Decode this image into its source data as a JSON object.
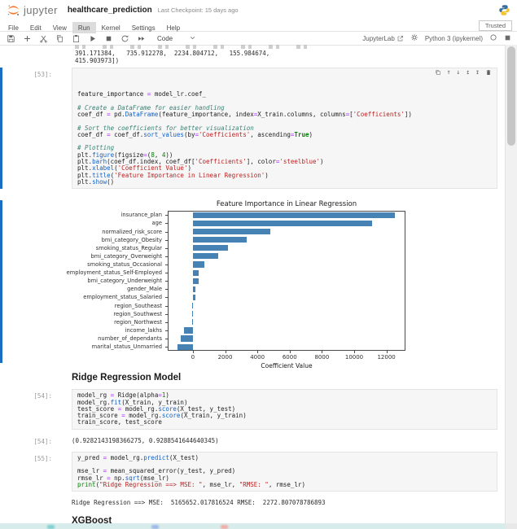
{
  "header": {
    "app_name": "jupyter",
    "notebook_title": "healthcare_prediction",
    "checkpoint": "Last Checkpoint: 15 days ago"
  },
  "menu": {
    "items": [
      "File",
      "Edit",
      "View",
      "Run",
      "Kernel",
      "Settings",
      "Help"
    ],
    "active_item": "Run",
    "trusted_label": "Trusted"
  },
  "toolbar": {
    "cell_type": "Code",
    "jupyterlab_label": "JupyterLab",
    "kernel_name": "Python 3 (ipykernel)"
  },
  "scrollback": {
    "lines": [
      "391.171384,   735.912278,  2234.804712,   155.984674,",
      "415.903973])"
    ]
  },
  "cells": [
    {
      "prompt": "[53]:",
      "lines": [
        [
          [
            "v",
            "feature_importance "
          ],
          [
            "o",
            "="
          ],
          [
            "v",
            " model_lr.coef_"
          ]
        ],
        [],
        [
          [
            "c",
            "# Create a DataFrame for easier handling"
          ]
        ],
        [
          [
            "v",
            "coef_df "
          ],
          [
            "o",
            "="
          ],
          [
            "v",
            " pd."
          ],
          [
            "f",
            "DataFrame"
          ],
          [
            "v",
            "(feature_importance, index"
          ],
          [
            "o",
            "="
          ],
          [
            "v",
            "X_train.columns, columns"
          ],
          [
            "o",
            "="
          ],
          [
            "v",
            "["
          ],
          [
            "s",
            "'Coefficients'"
          ],
          [
            "v",
            "])"
          ]
        ],
        [],
        [
          [
            "c",
            "# Sort the coefficients for better visualization"
          ]
        ],
        [
          [
            "v",
            "coef_df "
          ],
          [
            "o",
            "="
          ],
          [
            "v",
            " coef_df."
          ],
          [
            "f",
            "sort_values"
          ],
          [
            "v",
            "(by"
          ],
          [
            "o",
            "="
          ],
          [
            "s",
            "'Coefficients'"
          ],
          [
            "v",
            ", ascending"
          ],
          [
            "o",
            "="
          ],
          [
            "k",
            "True"
          ],
          [
            "v",
            ")"
          ]
        ],
        [],
        [
          [
            "c",
            "# Plotting"
          ]
        ],
        [
          [
            "v",
            "plt."
          ],
          [
            "f",
            "figure"
          ],
          [
            "v",
            "(figsize"
          ],
          [
            "o",
            "="
          ],
          [
            "v",
            "("
          ],
          [
            "n",
            "8"
          ],
          [
            "v",
            ", "
          ],
          [
            "n",
            "4"
          ],
          [
            "v",
            "))"
          ]
        ],
        [
          [
            "v",
            "plt."
          ],
          [
            "f",
            "barh"
          ],
          [
            "v",
            "(coef_df.index, coef_df["
          ],
          [
            "s",
            "'Coefficients'"
          ],
          [
            "v",
            "], color"
          ],
          [
            "o",
            "="
          ],
          [
            "s",
            "'steelblue'"
          ],
          [
            "v",
            ")"
          ]
        ],
        [
          [
            "v",
            "plt."
          ],
          [
            "f",
            "xlabel"
          ],
          [
            "v",
            "("
          ],
          [
            "s",
            "'Coefficient Value'"
          ],
          [
            "v",
            ")"
          ]
        ],
        [
          [
            "v",
            "plt."
          ],
          [
            "f",
            "title"
          ],
          [
            "v",
            "("
          ],
          [
            "s",
            "'Feature Importance in Linear Regression'"
          ],
          [
            "v",
            ")"
          ]
        ],
        [
          [
            "v",
            "plt."
          ],
          [
            "f",
            "show"
          ],
          [
            "v",
            "()"
          ]
        ]
      ]
    },
    {
      "prompt": "[54]:",
      "lines": [
        [
          [
            "v",
            "model_rg "
          ],
          [
            "o",
            "="
          ],
          [
            "v",
            " Ridge(alpha"
          ],
          [
            "o",
            "="
          ],
          [
            "n",
            "1"
          ],
          [
            "v",
            ")"
          ]
        ],
        [
          [
            "v",
            "model_rg."
          ],
          [
            "f",
            "fit"
          ],
          [
            "v",
            "(X_train, y_train)"
          ]
        ],
        [
          [
            "v",
            "test_score "
          ],
          [
            "o",
            "="
          ],
          [
            "v",
            " model_rg."
          ],
          [
            "f",
            "score"
          ],
          [
            "v",
            "(X_test, y_test)"
          ]
        ],
        [
          [
            "v",
            "train_score "
          ],
          [
            "o",
            "="
          ],
          [
            "v",
            " model_rg."
          ],
          [
            "f",
            "score"
          ],
          [
            "v",
            "(X_train, y_train)"
          ]
        ],
        [
          [
            "v",
            "train_score, test_score"
          ]
        ]
      ]
    },
    {
      "prompt": "[55]:",
      "lines": [
        [
          [
            "v",
            "y_pred "
          ],
          [
            "o",
            "="
          ],
          [
            "v",
            " model_rg."
          ],
          [
            "f",
            "predict"
          ],
          [
            "v",
            "(X_test)"
          ]
        ],
        [],
        [
          [
            "v",
            "mse_lr "
          ],
          [
            "o",
            "="
          ],
          [
            "v",
            " mean_squared_error(y_test, y_pred)"
          ]
        ],
        [
          [
            "v",
            "rmse_lr "
          ],
          [
            "o",
            "="
          ],
          [
            "v",
            " np."
          ],
          [
            "f",
            "sqrt"
          ],
          [
            "v",
            "(mse_lr)"
          ]
        ],
        [
          [
            "k2",
            "print"
          ],
          [
            "v",
            "("
          ],
          [
            "s",
            "\"Ridge Regression ==> MSE: \""
          ],
          [
            "v",
            ", mse_lr, "
          ],
          [
            "s",
            "\"RMSE: \""
          ],
          [
            "v",
            ", rmse_lr)"
          ]
        ]
      ]
    }
  ],
  "outputs": {
    "out54_prompt": "[54]:",
    "out54_text": "(0.9282143198366275, 0.9288541644640345)",
    "out55_text": "Ridge Regression ==> MSE:  5165652.017816524 RMSE:  2272.807078786893"
  },
  "headings": {
    "ridge": "Ridge Regression Model",
    "xgboost": "XGBoost"
  },
  "chart_data": {
    "type": "bar",
    "orientation": "horizontal",
    "title": "Feature Importance in Linear Regression",
    "xlabel": "Coefficient Value",
    "categories": [
      "insurance_plan",
      "age",
      "normalized_risk_score",
      "bmi_category_Obesity",
      "smoking_status_Regular",
      "bmi_category_Overweight",
      "smoking_status_Occasional",
      "employment_status_Self-Employed",
      "bmi_category_Underweight",
      "gender_Male",
      "employment_status_Salaried",
      "region_Southeast",
      "region_Southwest",
      "region_Northwest",
      "income_lakhs",
      "number_of_dependants",
      "marital_status_Unmarried"
    ],
    "values": [
      12500,
      11100,
      4800,
      3350,
      2200,
      1570,
      720,
      360,
      360,
      165,
      135,
      -30,
      -60,
      -60,
      -550,
      -730,
      -960
    ],
    "xticks": [
      0,
      2000,
      4000,
      6000,
      8000,
      10000,
      12000
    ],
    "xlim": [
      -1560,
      13180
    ],
    "bar_color": "#4682b4",
    "grid": false,
    "legend_position": "none"
  },
  "colors": {
    "accent_blue": "#1a6fc4",
    "jupyter_orange": "#f37726",
    "steelblue": "#4682b4"
  }
}
